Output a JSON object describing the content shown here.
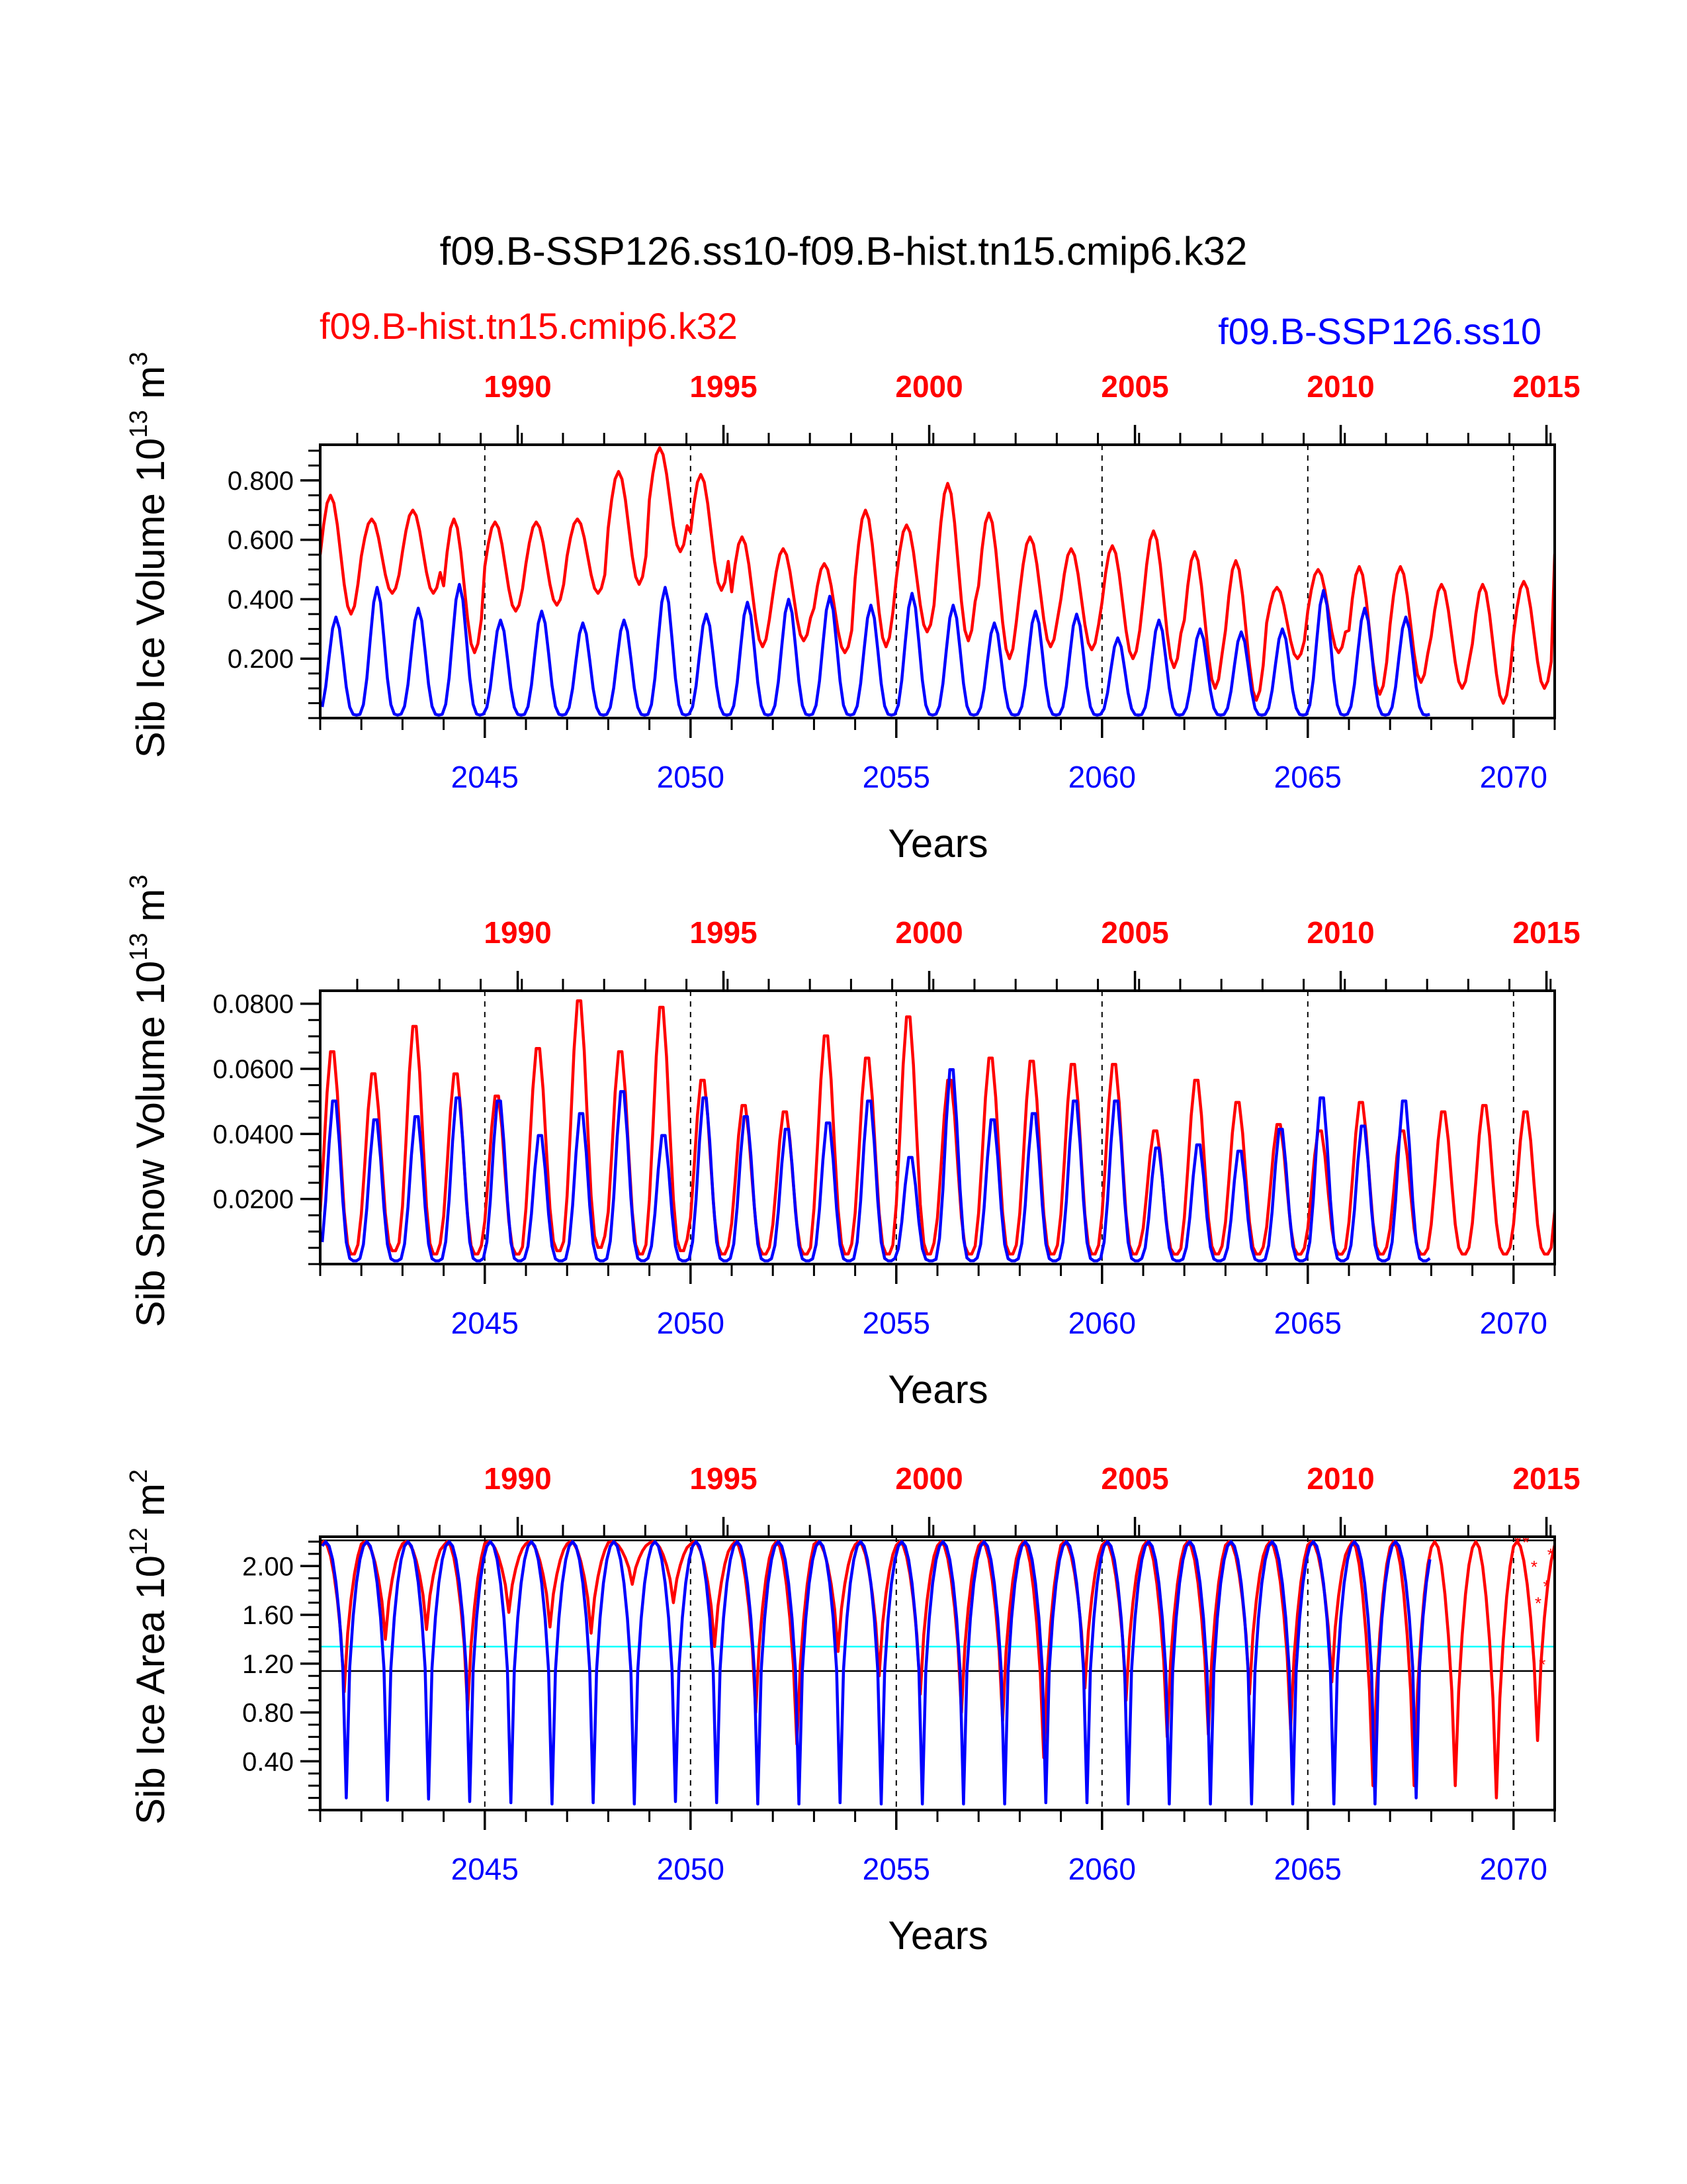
{
  "figure": {
    "title": "f09.B-SSP126.ss10-f09.B-hist.tn15.cmip6.k32",
    "legend_red": "f09.B-hist.tn15.cmip6.k32",
    "legend_blue": "f09.B-SSP126.ss10"
  },
  "colors": {
    "red": "#ff0000",
    "blue": "#0000ff",
    "cyan": "#00ffff",
    "black": "#000000"
  },
  "chart_data": [
    {
      "type": "line",
      "ylabel": "Sib Ice Volume 10",
      "ylabel_exp": "13",
      "ylabel_unit": " m",
      "ylabel_unit_exp": "3",
      "xlabel": "Years",
      "xlim": [
        2041,
        2071
      ],
      "ylim": [
        0,
        0.92
      ],
      "yticks": [
        0.2,
        0.4,
        0.6,
        0.8
      ],
      "ytick_labels": [
        "0.200",
        "0.400",
        "0.600",
        "0.800"
      ],
      "bottom_ticks": [
        2045,
        2050,
        2055,
        2060,
        2065,
        2070
      ],
      "bottom_tick_labels": [
        "2045",
        "2050",
        "2055",
        "2060",
        "2065",
        "2070"
      ],
      "top_tick_labels": [
        "1990",
        "1995",
        "2000",
        "2005",
        "2010",
        "2015"
      ],
      "series": [
        {
          "name": "f09.B-hist.tn15.cmip6.k32",
          "color": "#ff0000",
          "max": [
            0.75,
            0.67,
            0.7,
            0.67,
            0.66,
            0.66,
            0.67,
            0.83,
            0.91,
            0.82,
            0.61,
            0.57,
            0.52,
            0.7,
            0.65,
            0.79,
            0.69,
            0.61,
            0.57,
            0.58,
            0.63,
            0.56,
            0.53,
            0.44,
            0.5,
            0.51,
            0.51,
            0.45,
            0.45,
            0.46
          ],
          "min": [
            0.35,
            0.42,
            0.42,
            0.22,
            0.36,
            0.38,
            0.42,
            0.45,
            0.56,
            0.43,
            0.24,
            0.26,
            0.22,
            0.24,
            0.29,
            0.26,
            0.2,
            0.24,
            0.23,
            0.2,
            0.17,
            0.1,
            0.06,
            0.2,
            0.22,
            0.08,
            0.12,
            0.1,
            0.05,
            0.1
          ]
        },
        {
          "name": "f09.B-SSP126.ss10",
          "color": "#0000ff",
          "max": [
            0.34,
            0.44,
            0.37,
            0.45,
            0.33,
            0.36,
            0.32,
            0.33,
            0.44,
            0.35,
            0.39,
            0.4,
            0.41,
            0.38,
            0.42,
            0.38,
            0.32,
            0.36,
            0.35,
            0.27,
            0.33,
            0.3,
            0.29,
            0.3,
            0.43,
            0.37
          ],
          "min": [
            0.01,
            0.01,
            0.01,
            0.01,
            0.01,
            0.01,
            0.01,
            0.01,
            0.01,
            0.01,
            0.01,
            0.01,
            0.01,
            0.01,
            0.01,
            0.01,
            0.01,
            0.01,
            0.01,
            0.01,
            0.01,
            0.01,
            0.01,
            0.01,
            0.01,
            0.01
          ]
        }
      ]
    },
    {
      "type": "line",
      "ylabel": "Sib Snow Volume 10",
      "ylabel_exp": "13",
      "ylabel_unit": " m",
      "ylabel_unit_exp": "3",
      "xlabel": "Years",
      "xlim": [
        2041,
        2071
      ],
      "ylim": [
        0,
        0.084
      ],
      "yticks": [
        0.02,
        0.04,
        0.06,
        0.08
      ],
      "ytick_labels": [
        "0.0200",
        "0.0400",
        "0.0600",
        "0.0800"
      ],
      "bottom_ticks": [
        2045,
        2050,
        2055,
        2060,
        2065,
        2070
      ],
      "bottom_tick_labels": [
        "2045",
        "2050",
        "2055",
        "2060",
        "2065",
        "2070"
      ],
      "top_tick_labels": [
        "1990",
        "1995",
        "2000",
        "2005",
        "2010",
        "2015"
      ],
      "series": [
        {
          "name": "f09.B-hist.tn15.cmip6.k32",
          "color": "#ff0000",
          "max": [
            0.067,
            0.06,
            0.075,
            0.06,
            0.053,
            0.068,
            0.083,
            0.067,
            0.081,
            0.058,
            0.05,
            0.048,
            0.072,
            0.065,
            0.078,
            0.058,
            0.065,
            0.064,
            0.063,
            0.063,
            0.042,
            0.058,
            0.051,
            0.044,
            0.042,
            0.051,
            0.042,
            0.048,
            0.05,
            0.048
          ],
          "min": [
            0.003,
            0.004,
            0.003,
            0.003,
            0.003,
            0.004,
            0.005,
            0.003,
            0.004,
            0.003,
            0.003,
            0.003,
            0.003,
            0.003,
            0.003,
            0.003,
            0.003,
            0.003,
            0.003,
            0.003,
            0.003,
            0.003,
            0.003,
            0.003,
            0.003,
            0.003,
            0.003,
            0.003,
            0.003,
            0.003
          ]
        },
        {
          "name": "f09.B-SSP126.ss10",
          "color": "#0000ff",
          "max": [
            0.052,
            0.046,
            0.047,
            0.053,
            0.052,
            0.041,
            0.048,
            0.055,
            0.041,
            0.053,
            0.047,
            0.043,
            0.045,
            0.052,
            0.034,
            0.062,
            0.046,
            0.048,
            0.052,
            0.052,
            0.037,
            0.038,
            0.036,
            0.043,
            0.053,
            0.044
          ],
          "min": [
            0.001,
            0.001,
            0.001,
            0.001,
            0.001,
            0.001,
            0.001,
            0.001,
            0.001,
            0.001,
            0.001,
            0.001,
            0.001,
            0.001,
            0.001,
            0.001,
            0.001,
            0.001,
            0.001,
            0.001,
            0.001,
            0.001,
            0.001,
            0.001,
            0.001,
            0.001
          ]
        }
      ]
    },
    {
      "type": "line",
      "ylabel": "Sib Ice Area 10",
      "ylabel_exp": "12",
      "ylabel_unit": " m",
      "ylabel_unit_exp": "2",
      "xlabel": "Years",
      "xlim": [
        2041,
        2071
      ],
      "ylim": [
        0,
        2.24
      ],
      "yticks": [
        0.4,
        0.8,
        1.2,
        1.6,
        2.0
      ],
      "ytick_labels": [
        "0.40",
        "0.80",
        "1.20",
        "1.60",
        "2.00"
      ],
      "bottom_ticks": [
        2045,
        2050,
        2055,
        2060,
        2065,
        2070
      ],
      "bottom_tick_labels": [
        "2045",
        "2050",
        "2055",
        "2060",
        "2065",
        "2070"
      ],
      "top_tick_labels": [
        "1990",
        "1995",
        "2000",
        "2005",
        "2010",
        "2015"
      ],
      "reference_lines": [
        {
          "y": 2.21,
          "color": "#000000"
        },
        {
          "y": 1.34,
          "color": "#00ffff"
        },
        {
          "y": 1.14,
          "color": "#000000"
        }
      ],
      "series": [
        {
          "name": "f09.B-hist.tn15.cmip6.k32",
          "color": "#ff0000",
          "max": [
            2.2,
            2.2,
            2.2,
            2.2,
            2.2,
            2.2,
            2.2,
            2.2,
            2.2,
            2.2,
            2.2,
            2.2,
            2.2,
            2.2,
            2.2,
            2.2,
            2.2,
            2.2,
            2.2,
            2.2,
            2.2,
            2.2,
            2.2,
            2.2,
            2.2,
            2.2,
            2.2,
            2.2,
            2.2,
            2.2
          ],
          "min": [
            0.97,
            1.4,
            1.48,
            0.82,
            1.62,
            1.5,
            1.45,
            1.85,
            1.7,
            1.34,
            0.8,
            0.54,
            1.3,
            1.1,
            0.95,
            0.8,
            0.73,
            0.43,
            1.0,
            0.9,
            0.6,
            0.62,
            0.95,
            0.66,
            1.05,
            0.2,
            0.2,
            0.2,
            0.1,
            0.57
          ]
        },
        {
          "name": "f09.B-SSP126.ss10",
          "color": "#0000ff",
          "max": [
            2.2,
            2.2,
            2.2,
            2.2,
            2.2,
            2.2,
            2.2,
            2.2,
            2.2,
            2.2,
            2.2,
            2.2,
            2.2,
            2.2,
            2.2,
            2.2,
            2.2,
            2.2,
            2.2,
            2.2,
            2.2,
            2.2,
            2.2,
            2.2,
            2.2,
            2.2
          ],
          "min": [
            0.1,
            0.08,
            0.09,
            0.07,
            0.06,
            0.05,
            0.06,
            0.05,
            0.07,
            0.06,
            0.05,
            0.05,
            0.06,
            0.05,
            0.05,
            0.05,
            0.05,
            0.06,
            0.06,
            0.05,
            0.05,
            0.05,
            0.05,
            0.05,
            0.05,
            0.05
          ]
        }
      ]
    }
  ]
}
